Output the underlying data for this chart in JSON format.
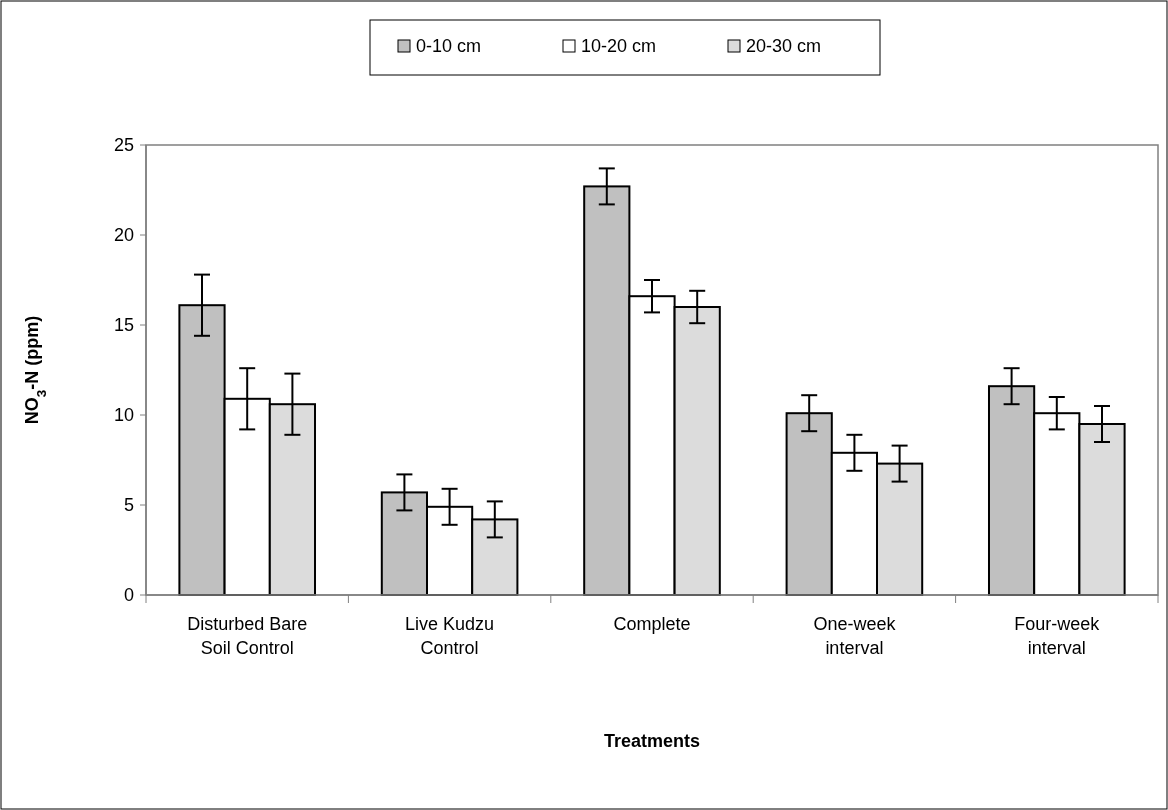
{
  "chart_data": {
    "type": "bar",
    "xlabel": "Treatments",
    "ylabel": "NO$_{3}$-N (ppm)",
    "categories": [
      "Disturbed Bare Soil Control",
      "Live Kudzu Control",
      "Complete",
      "One-week interval",
      "Four-week interval"
    ],
    "series": [
      {
        "name": "0-10 cm",
        "color": "#c0c0c0",
        "values": [
          16.1,
          5.7,
          22.7,
          10.1,
          11.6
        ],
        "errors": [
          1.7,
          1.0,
          1.0,
          1.0,
          1.0
        ]
      },
      {
        "name": "10-20 cm",
        "color": "#ffffff",
        "values": [
          10.9,
          4.9,
          16.6,
          7.9,
          10.1
        ],
        "errors": [
          1.7,
          1.0,
          0.9,
          1.0,
          0.9
        ]
      },
      {
        "name": "20-30 cm",
        "color": "#dcdcdc",
        "values": [
          10.6,
          4.2,
          16.0,
          7.3,
          9.5
        ],
        "errors": [
          1.7,
          1.0,
          0.9,
          1.0,
          1.0
        ]
      }
    ],
    "ylim": [
      0,
      25
    ],
    "yticks": [
      0,
      5,
      10,
      15,
      20,
      25
    ],
    "grid": false,
    "legend": "top"
  }
}
